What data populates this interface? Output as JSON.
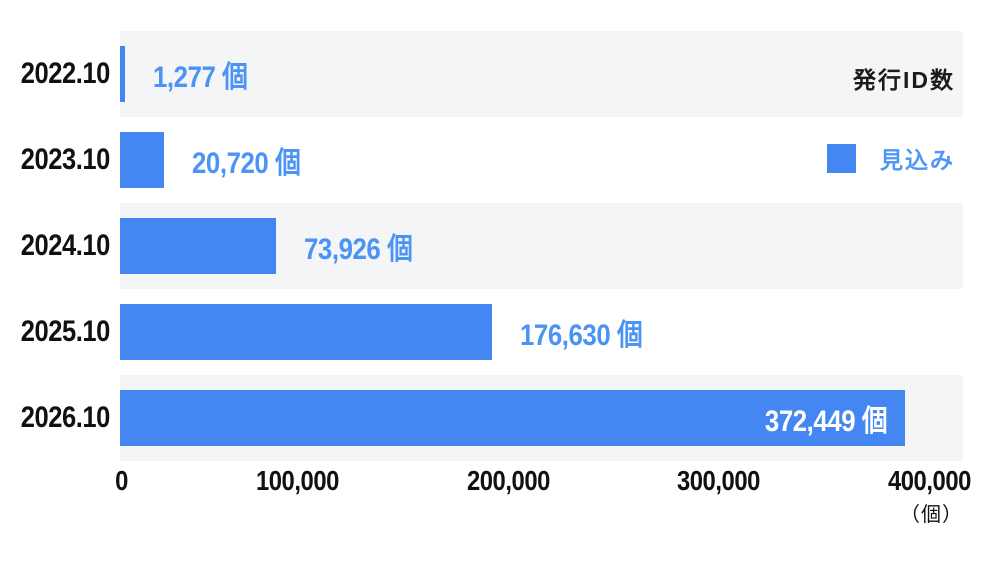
{
  "chart": {
    "title": "発行ID数",
    "legend": {
      "label": "見込み"
    },
    "axis_unit": "（個）"
  },
  "chart_data": {
    "type": "bar",
    "orientation": "horizontal",
    "title": "発行ID数",
    "categories": [
      "2022.10",
      "2023.10",
      "2024.10",
      "2025.10",
      "2026.10"
    ],
    "series": [
      {
        "name": "見込み",
        "values": [
          1277,
          20720,
          73926,
          176630,
          372449
        ]
      }
    ],
    "value_labels": [
      "1,277 個",
      "20,720 個",
      "73,926 個",
      "176,630 個",
      "372,449 個"
    ],
    "xlim": [
      0,
      400000
    ],
    "x_ticks": [
      0,
      100000,
      200000,
      300000,
      400000
    ],
    "x_tick_labels": [
      "0",
      "100,000",
      "200,000",
      "300,000",
      "400,000"
    ],
    "x_unit": "（個）",
    "ylabel": "",
    "xlabel": "",
    "legend_position": "top-right",
    "grid": false,
    "row_stripes": true,
    "stripe_rows": [
      0,
      2,
      4
    ],
    "value_label_inside": [
      false,
      false,
      false,
      false,
      true
    ]
  },
  "colors": {
    "bar": "#4587F2",
    "value_text": "#4B93F5",
    "bar_inner_text": "#FFFFFF",
    "category_text": "#111111",
    "axis_text": "#111111",
    "stripe": "#F4F5F6",
    "legend_text": "#4D97F6",
    "title_text": "#1A1A1A",
    "background": "#FFFFFF"
  }
}
